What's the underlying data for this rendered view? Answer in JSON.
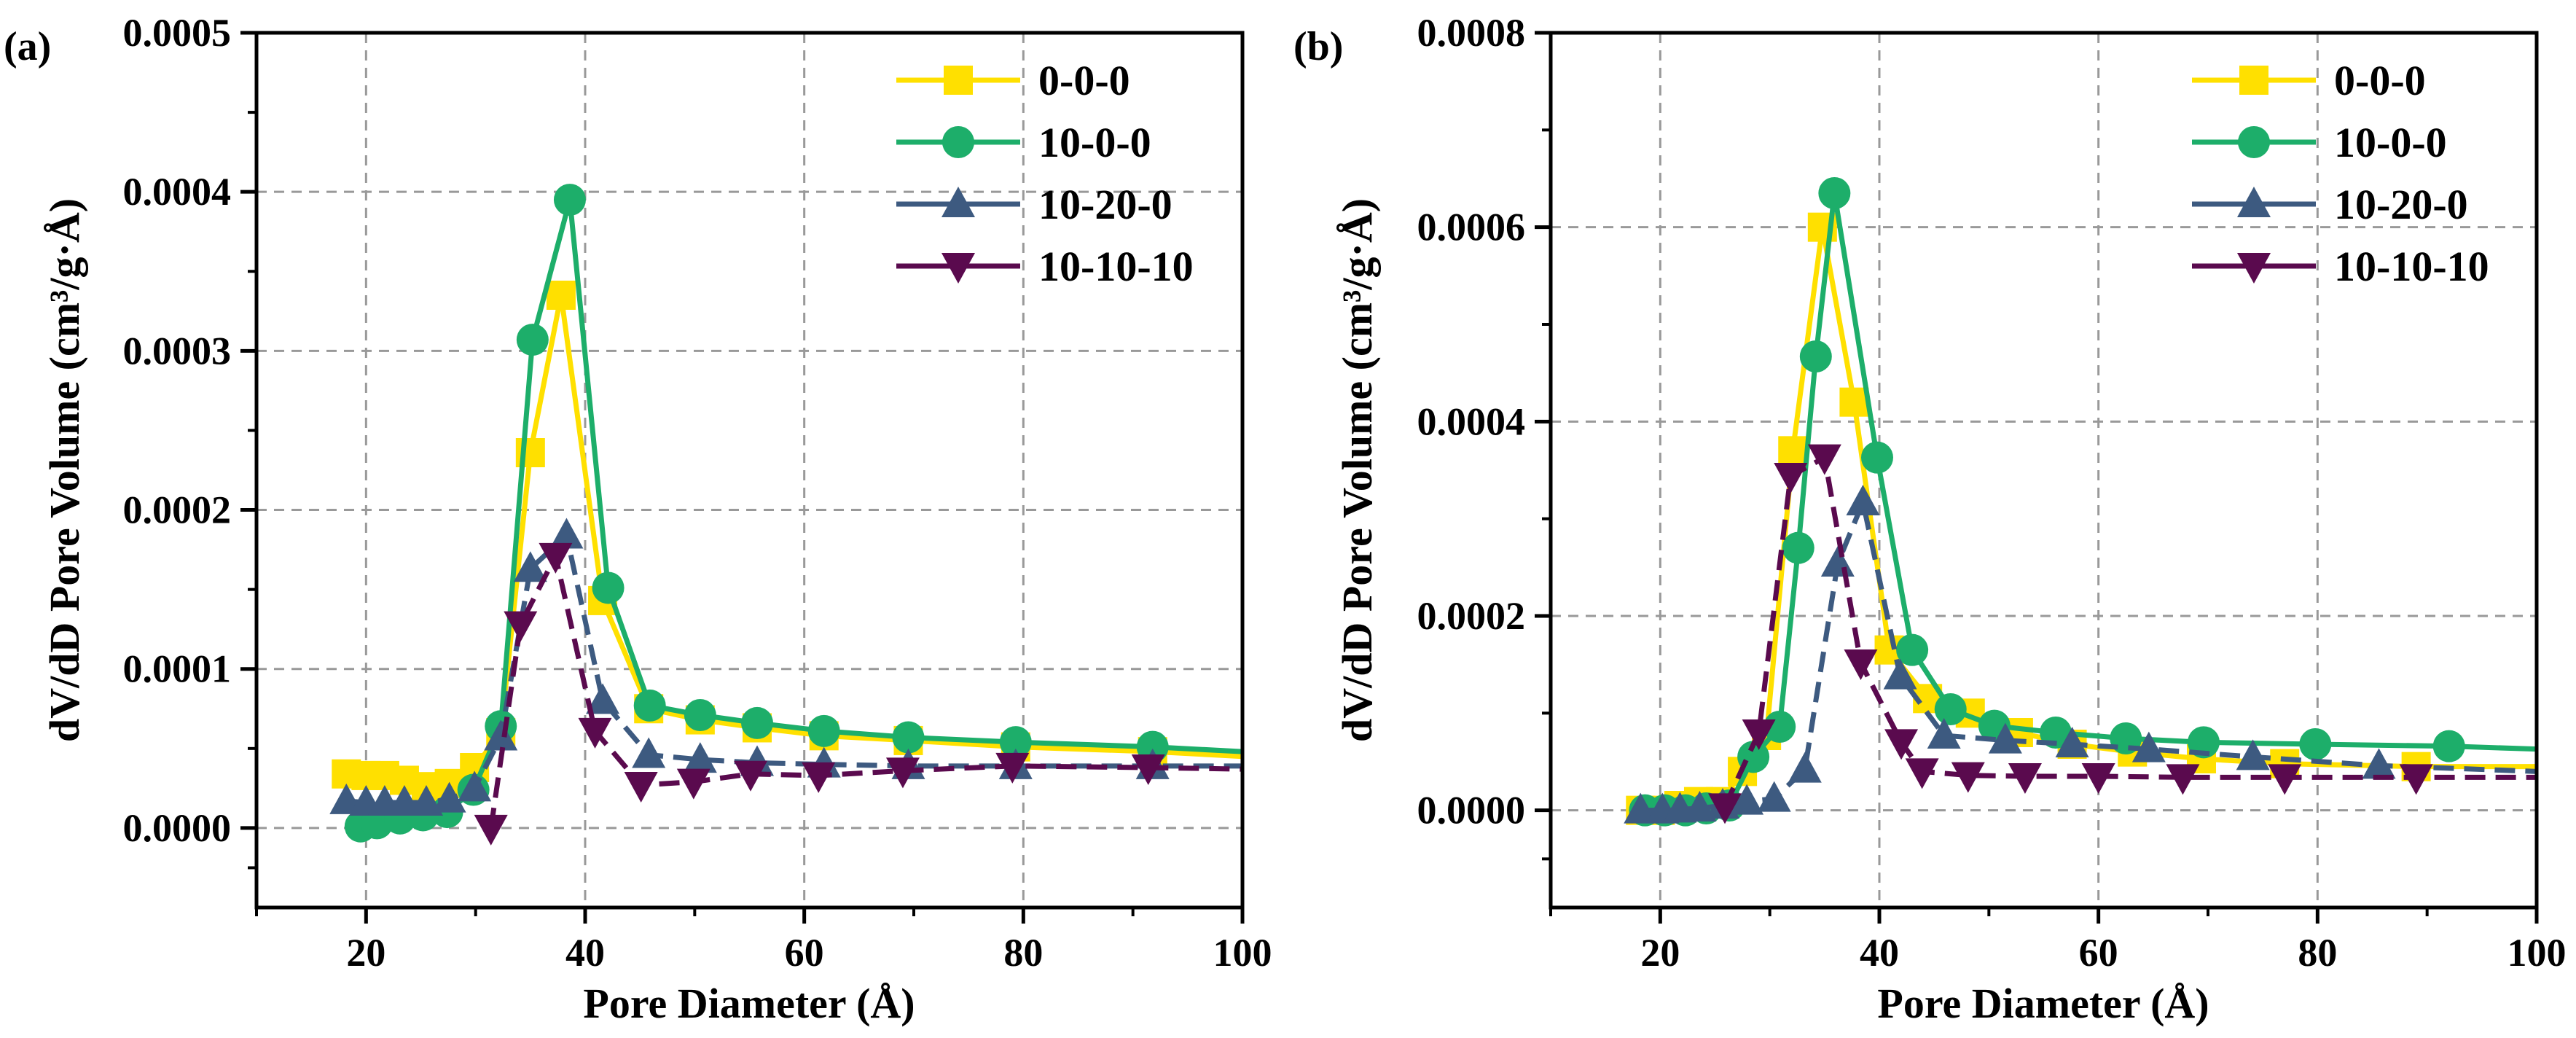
{
  "chart_data": [
    {
      "type": "line",
      "panel_label": "(a)",
      "xlabel": "Pore Diameter (Å)",
      "ylabel": "dV/dD Pore Volume (cm³/g·Å)",
      "xlim": [
        10,
        100
      ],
      "ylim": [
        -5e-05,
        0.0005
      ],
      "xticks": [
        20,
        40,
        60,
        80,
        100
      ],
      "xtick_labels": [
        "20",
        "40",
        "60",
        "80",
        "100"
      ],
      "yticks": [
        0,
        0.0001,
        0.0002,
        0.0003,
        0.0004,
        0.0005
      ],
      "ytick_labels": [
        "0.0000",
        "0.0001",
        "0.0002",
        "0.0003",
        "0.0004",
        "0.0005"
      ],
      "grid": true,
      "legend_position": "top-right",
      "series": [
        {
          "name": "0-0-0",
          "color": "#FFE000",
          "marker": "square",
          "x": [
            18.2,
            20.0,
            21.7,
            23.5,
            25.5,
            27.6,
            29.9,
            32.3,
            35.0,
            37.8,
            41.6,
            45.8,
            50.5,
            55.7,
            61.8,
            69.5,
            79.3,
            91.8,
            100
          ],
          "y": [
            3.4e-05,
            3.3e-05,
            3.3e-05,
            3e-05,
            2.6e-05,
            2.8e-05,
            3.8e-05,
            6e-05,
            0.000236,
            0.000335,
            0.000143,
            7.5e-05,
            6.8e-05,
            6.3e-05,
            5.8e-05,
            5.5e-05,
            5.1e-05,
            4.8e-05,
            4.5e-05
          ]
        },
        {
          "name": "10-0-0",
          "color": "#1DAE6A",
          "marker": "circle",
          "x": [
            19.5,
            21.0,
            23.1,
            25.2,
            27.4,
            29.8,
            32.3,
            35.2,
            38.6,
            42.1,
            45.9,
            50.5,
            55.7,
            61.8,
            69.5,
            79.3,
            91.8,
            100
          ],
          "y": [
            1e-06,
            3e-06,
            6e-06,
            8e-06,
            1e-05,
            2.4e-05,
            6.4e-05,
            0.000307,
            0.000395,
            0.000151,
            7.7e-05,
            7.1e-05,
            6.6e-05,
            6.1e-05,
            5.7e-05,
            5.4e-05,
            5.1e-05,
            4.8e-05
          ]
        },
        {
          "name": "10-20-0",
          "color": "#3D5A80",
          "marker": "triangle-up",
          "x": [
            18.2,
            20.0,
            21.7,
            23.5,
            25.5,
            27.6,
            29.9,
            32.3,
            35.0,
            38.3,
            41.6,
            45.8,
            50.5,
            55.7,
            61.8,
            69.5,
            79.3,
            91.8,
            100
          ],
          "y": [
            1.7e-05,
            1.6e-05,
            1.6e-05,
            1.6e-05,
            1.6e-05,
            1.8e-05,
            2.5e-05,
            5.7e-05,
            0.000163,
            0.000184,
            8e-05,
            4.6e-05,
            4.3e-05,
            4.1e-05,
            4e-05,
            3.9e-05,
            3.9e-05,
            3.9e-05,
            3.9e-05
          ]
        },
        {
          "name": "10-10-10",
          "color": "#5A0A4E",
          "marker": "triangle-down",
          "x": [
            31.4,
            34.1,
            37.3,
            40.9,
            45.1,
            49.9,
            55.1,
            61.3,
            69.0,
            79.0,
            91.4,
            100
          ],
          "y": [
            0.0,
            0.000128,
            0.000171,
            6.1e-05,
            2.7e-05,
            2.9e-05,
            3.4e-05,
            3.3e-05,
            3.6e-05,
            3.9e-05,
            3.8e-05,
            3.7e-05
          ]
        }
      ]
    },
    {
      "type": "line",
      "panel_label": "(b)",
      "xlabel": "Pore Diameter (Å)",
      "ylabel": "dV/dD Pore Volume (cm³/g·Å)",
      "xlim": [
        10,
        100
      ],
      "ylim": [
        -0.0001,
        0.0008
      ],
      "xticks": [
        20,
        40,
        60,
        80,
        100
      ],
      "xtick_labels": [
        "20",
        "40",
        "60",
        "80",
        "100"
      ],
      "yticks": [
        0,
        0.0002,
        0.0004,
        0.0006,
        0.0008
      ],
      "ytick_labels": [
        "0.0000",
        "0.0002",
        "0.0004",
        "0.0006",
        "0.0008"
      ],
      "grid": true,
      "legend_position": "top-right",
      "series": [
        {
          "name": "0-0-0",
          "color": "#FFE000",
          "marker": "square",
          "x": [
            18.2,
            20.0,
            21.7,
            23.5,
            25.5,
            27.5,
            29.7,
            32.1,
            34.8,
            37.7,
            40.9,
            44.4,
            48.3,
            52.7,
            57.6,
            63.1,
            69.4,
            77.0,
            89.0,
            100
          ],
          "y": [
            0.0,
            0.0,
            5e-06,
            9e-06,
            9e-06,
            4e-05,
            7.7e-05,
            0.00037,
            0.0006,
            0.00042,
            0.000165,
            0.000115,
            0.0001,
            8e-05,
            6.8e-05,
            6e-05,
            5.3e-05,
            4.8e-05,
            4.5e-05,
            4.5e-05
          ]
        },
        {
          "name": "10-0-0",
          "color": "#1DAE6A",
          "marker": "circle",
          "x": [
            18.6,
            20.4,
            22.3,
            24.2,
            26.3,
            28.5,
            30.9,
            32.6,
            34.2,
            35.9,
            39.8,
            43.0,
            46.5,
            50.5,
            56.1,
            62.5,
            69.6,
            79.8,
            92.0,
            100
          ],
          "y": [
            0.0,
            0.0,
            0.0,
            2e-06,
            5e-06,
            5.5e-05,
            8.6e-05,
            0.00027,
            0.000467,
            0.000635,
            0.000363,
            0.000165,
            0.000104,
            8.7e-05,
            8e-05,
            7.4e-05,
            7e-05,
            6.8e-05,
            6.6e-05,
            6.3e-05
          ]
        },
        {
          "name": "10-20-0",
          "color": "#3D5A80",
          "marker": "triangle-up",
          "x": [
            18.2,
            20.2,
            21.8,
            23.6,
            25.7,
            27.9,
            30.4,
            33.2,
            36.2,
            38.5,
            41.9,
            45.9,
            51.5,
            57.6,
            64.6,
            74.1,
            85.6,
            100
          ],
          "y": [
            0.0,
            0.0,
            1e-06,
            2e-06,
            5e-06,
            9e-06,
            1.2e-05,
            4.2e-05,
            0.000254,
            0.000317,
            0.000138,
            7.7e-05,
            7.2e-05,
            6.8e-05,
            6.3e-05,
            5.5e-05,
            4.6e-05,
            4e-05
          ]
        },
        {
          "name": "10-10-10",
          "color": "#5A0A4E",
          "marker": "triangle-down",
          "x": [
            25.9,
            29.0,
            31.9,
            35.0,
            38.3,
            42.0,
            43.9,
            48.1,
            53.3,
            60.0,
            67.7,
            77.0,
            89.0,
            100
          ],
          "y": [
            4e-06,
            8e-05,
            0.000344,
            0.000363,
            0.000152,
            7e-05,
            4e-05,
            3.6e-05,
            3.5e-05,
            3.5e-05,
            3.4e-05,
            3.4e-05,
            3.4e-05,
            3.4e-05
          ]
        }
      ]
    }
  ]
}
